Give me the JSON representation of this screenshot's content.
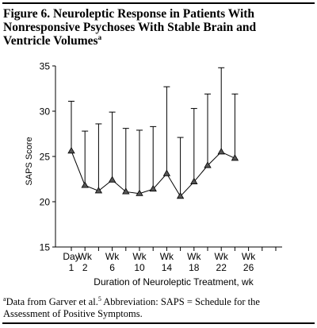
{
  "figure": {
    "title_line1": "Figure 6. Neuroleptic Response in Patients With",
    "title_line2": "Nonresponsive Psychoses With Stable Brain and",
    "title_line3": "Ventricle Volumes",
    "title_superscript": "a"
  },
  "chart_data": {
    "type": "line",
    "title": "",
    "xlabel": "Duration of Neuroleptic Treatment, wk",
    "ylabel": "SAPS Score",
    "ylim": [
      15,
      35
    ],
    "yticks": [
      15,
      20,
      25,
      30,
      35
    ],
    "x_points": [
      0,
      1,
      2,
      3,
      4,
      5,
      6,
      7,
      8,
      9,
      10,
      11,
      12
    ],
    "x_tick_labels": [
      {
        "top": "Day",
        "bottom": "1"
      },
      {
        "top": "Wk",
        "bottom": "2"
      },
      {
        "top": "Wk",
        "bottom": "6"
      },
      {
        "top": "Wk",
        "bottom": "10"
      },
      {
        "top": "Wk",
        "bottom": "14"
      },
      {
        "top": "Wk",
        "bottom": "18"
      },
      {
        "top": "Wk",
        "bottom": "22"
      },
      {
        "top": "Wk",
        "bottom": "26"
      }
    ],
    "x_tick_label_positions": [
      0,
      1,
      3,
      5,
      7,
      9,
      11,
      13
    ],
    "series": [
      {
        "values": [
          25.6,
          21.8,
          21.2,
          22.4,
          21.1,
          20.9,
          21.4,
          23.1,
          20.6,
          22.2,
          24.0,
          25.5,
          24.8
        ],
        "error_upper": [
          31.1,
          27.8,
          28.6,
          29.9,
          28.1,
          27.9,
          28.3,
          32.7,
          27.1,
          30.3,
          31.9,
          34.8,
          31.9
        ],
        "marker": "triangle",
        "color": "#555555"
      }
    ],
    "grid": false
  },
  "footnote": {
    "sup_a": "a",
    "text_part1": "Data from Garver et al.",
    "sup_ref": "5",
    "text_part2": " Abbreviation: SAPS = Schedule for the",
    "line2": "Assessment of Positive Symptoms."
  }
}
